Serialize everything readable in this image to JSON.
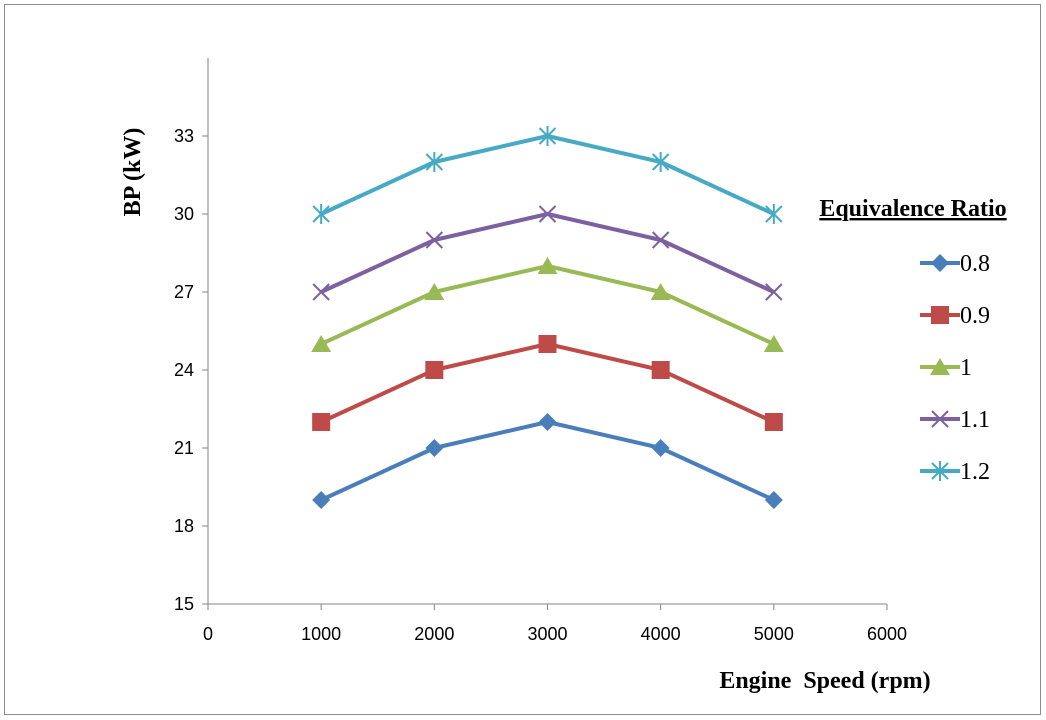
{
  "chart_data": {
    "type": "line",
    "title": "",
    "xlabel": "Engine  Speed (rpm)",
    "ylabel": "BP (kW)",
    "xlim": [
      0,
      6000
    ],
    "ylim": [
      15,
      36
    ],
    "xticks": [
      0,
      1000,
      2000,
      3000,
      4000,
      5000,
      6000
    ],
    "yticks": [
      15,
      18,
      21,
      24,
      27,
      30,
      33
    ],
    "grid": false,
    "legend_title": "Equivalence Ratio",
    "legend_position": "right",
    "x": [
      1000,
      2000,
      3000,
      4000,
      5000
    ],
    "series": [
      {
        "name": "0.8",
        "values": [
          19,
          21,
          22,
          21,
          19
        ],
        "color": "#4a7ebb",
        "marker": "diamond"
      },
      {
        "name": "0.9",
        "values": [
          22,
          24,
          25,
          24,
          22
        ],
        "color": "#be4b48",
        "marker": "square"
      },
      {
        "name": "1",
        "values": [
          25,
          27,
          28,
          27,
          25
        ],
        "color": "#98b954",
        "marker": "triangle"
      },
      {
        "name": "1.1",
        "values": [
          27,
          29,
          30,
          29,
          27
        ],
        "color": "#7d60a0",
        "marker": "x"
      },
      {
        "name": "1.2",
        "values": [
          30,
          32,
          33,
          32,
          30
        ],
        "color": "#46aac5",
        "marker": "star"
      }
    ]
  }
}
